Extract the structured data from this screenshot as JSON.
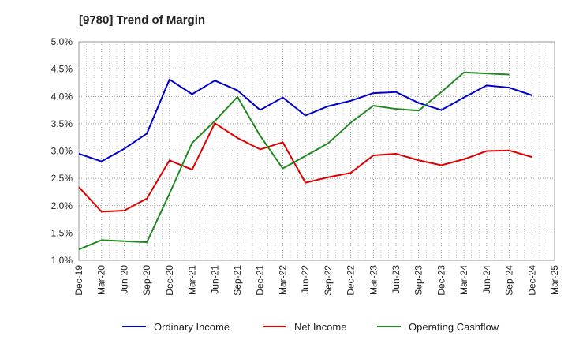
{
  "chart_data": {
    "type": "line",
    "title": "[9780]  Trend of Margin",
    "xlabel": "",
    "ylabel": "",
    "x": [
      "Dec-19",
      "Mar-20",
      "Jun-20",
      "Sep-20",
      "Dec-20",
      "Mar-21",
      "Jun-21",
      "Sep-21",
      "Dec-21",
      "Mar-22",
      "Jun-22",
      "Sep-22",
      "Dec-22",
      "Mar-23",
      "Jun-23",
      "Sep-23",
      "Dec-23",
      "Mar-24",
      "Jun-24",
      "Sep-24",
      "Dec-24",
      "Mar-25"
    ],
    "ylim": [
      1.0,
      5.0
    ],
    "yticks": [
      "1.0%",
      "1.5%",
      "2.0%",
      "2.5%",
      "3.0%",
      "3.5%",
      "4.0%",
      "4.5%",
      "5.0%"
    ],
    "grid": true,
    "legend_position": "bottom",
    "series": [
      {
        "name": "Ordinary Income",
        "color": "#0000cc",
        "values": [
          2.95,
          2.81,
          3.04,
          3.32,
          4.31,
          4.04,
          4.29,
          4.11,
          3.75,
          3.98,
          3.65,
          3.82,
          3.92,
          4.06,
          4.08,
          3.88,
          3.75,
          3.98,
          4.2,
          4.16,
          4.02,
          null
        ]
      },
      {
        "name": "Net Income",
        "color": "#dd0000",
        "values": [
          2.34,
          1.89,
          1.91,
          2.13,
          2.83,
          2.66,
          3.51,
          3.24,
          3.03,
          3.16,
          2.42,
          2.52,
          2.6,
          2.92,
          2.95,
          2.83,
          2.74,
          2.85,
          3.0,
          3.01,
          2.89,
          null
        ]
      },
      {
        "name": "Operating Cashflow",
        "color": "#228822",
        "values": [
          1.2,
          1.37,
          1.35,
          1.33,
          2.22,
          3.15,
          3.55,
          3.99,
          3.28,
          2.68,
          2.91,
          3.14,
          3.52,
          3.83,
          3.77,
          3.74,
          4.08,
          4.44,
          4.42,
          4.4,
          null,
          null
        ]
      }
    ]
  }
}
